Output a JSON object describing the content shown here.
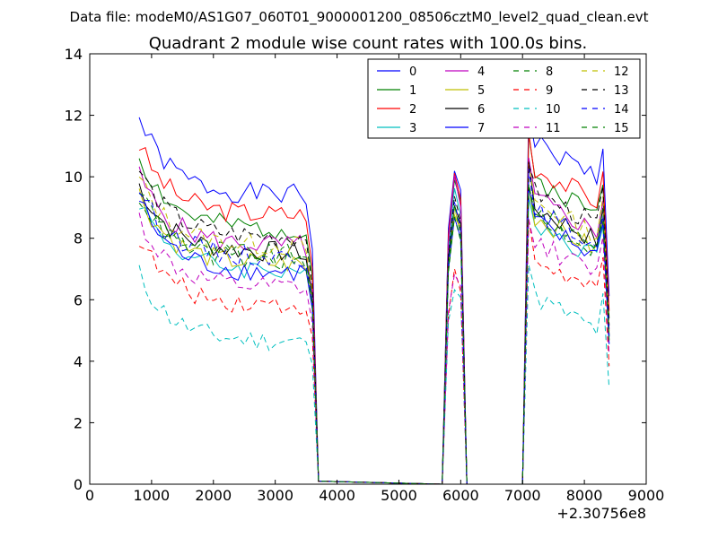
{
  "suptitle": "Data file: modeM0/AS1G07_060T01_9000001200_08506cztM0_level2_quad_clean.evt",
  "chart_data": {
    "type": "line",
    "title": "Quadrant 2 module wise count rates with 100.0s bins.",
    "xlabel": "",
    "ylabel": "",
    "xlim": [
      0,
      9000
    ],
    "ylim": [
      0,
      14
    ],
    "x_offset_label": "+2.30756e8",
    "xticks": [
      0,
      1000,
      2000,
      3000,
      4000,
      5000,
      6000,
      7000,
      8000,
      9000
    ],
    "yticks": [
      0,
      2,
      4,
      6,
      8,
      10,
      12,
      14
    ],
    "grid": false,
    "legend_location": "upper-right",
    "legend_columns": 4,
    "series": [
      {
        "name": "0",
        "color": "#0000ff",
        "dash": "solid",
        "base": 10.2,
        "amp": 1.0,
        "peak": 10.4,
        "seed": 1
      },
      {
        "name": "1",
        "color": "#008000",
        "dash": "solid",
        "base": 9.0,
        "amp": 0.9,
        "peak": 10.0,
        "seed": 2
      },
      {
        "name": "2",
        "color": "#ff0000",
        "dash": "solid",
        "base": 9.4,
        "amp": 0.8,
        "peak": 10.1,
        "seed": 3
      },
      {
        "name": "3",
        "color": "#00bfbf",
        "dash": "solid",
        "base": 7.6,
        "amp": 0.8,
        "peak": 9.5,
        "seed": 4
      },
      {
        "name": "4",
        "color": "#bf00bf",
        "dash": "solid",
        "base": 8.4,
        "amp": 0.8,
        "peak": 9.8,
        "seed": 5
      },
      {
        "name": "5",
        "color": "#bfbf00",
        "dash": "solid",
        "base": 7.8,
        "amp": 0.8,
        "peak": 9.0,
        "seed": 6
      },
      {
        "name": "6",
        "color": "#000000",
        "dash": "solid",
        "base": 8.1,
        "amp": 0.7,
        "peak": 9.2,
        "seed": 7
      },
      {
        "name": "7",
        "color": "#0000ff",
        "dash": "solid",
        "base": 7.6,
        "amp": 0.9,
        "peak": 8.7,
        "seed": 8
      },
      {
        "name": "8",
        "color": "#008000",
        "dash": "dashed",
        "base": 8.0,
        "amp": 0.7,
        "peak": 8.6,
        "seed": 9
      },
      {
        "name": "9",
        "color": "#ff0000",
        "dash": "dashed",
        "base": 6.4,
        "amp": 0.7,
        "peak": 6.8,
        "seed": 10
      },
      {
        "name": "10",
        "color": "#00bfbf",
        "dash": "dashed",
        "base": 5.2,
        "amp": 0.7,
        "peak": 6.6,
        "seed": 11
      },
      {
        "name": "11",
        "color": "#bf00bf",
        "dash": "dashed",
        "base": 7.0,
        "amp": 0.8,
        "peak": 7.0,
        "seed": 12
      },
      {
        "name": "12",
        "color": "#bfbf00",
        "dash": "dashed",
        "base": 8.3,
        "amp": 0.7,
        "peak": 9.0,
        "seed": 13
      },
      {
        "name": "13",
        "color": "#000000",
        "dash": "dashed",
        "base": 8.6,
        "amp": 0.7,
        "peak": 9.3,
        "seed": 14
      },
      {
        "name": "14",
        "color": "#0000ff",
        "dash": "dashed",
        "base": 8.0,
        "amp": 0.8,
        "peak": 9.0,
        "seed": 15
      },
      {
        "name": "15",
        "color": "#008000",
        "dash": "dashed",
        "base": 7.8,
        "amp": 0.7,
        "peak": 8.8,
        "seed": 16
      }
    ]
  }
}
